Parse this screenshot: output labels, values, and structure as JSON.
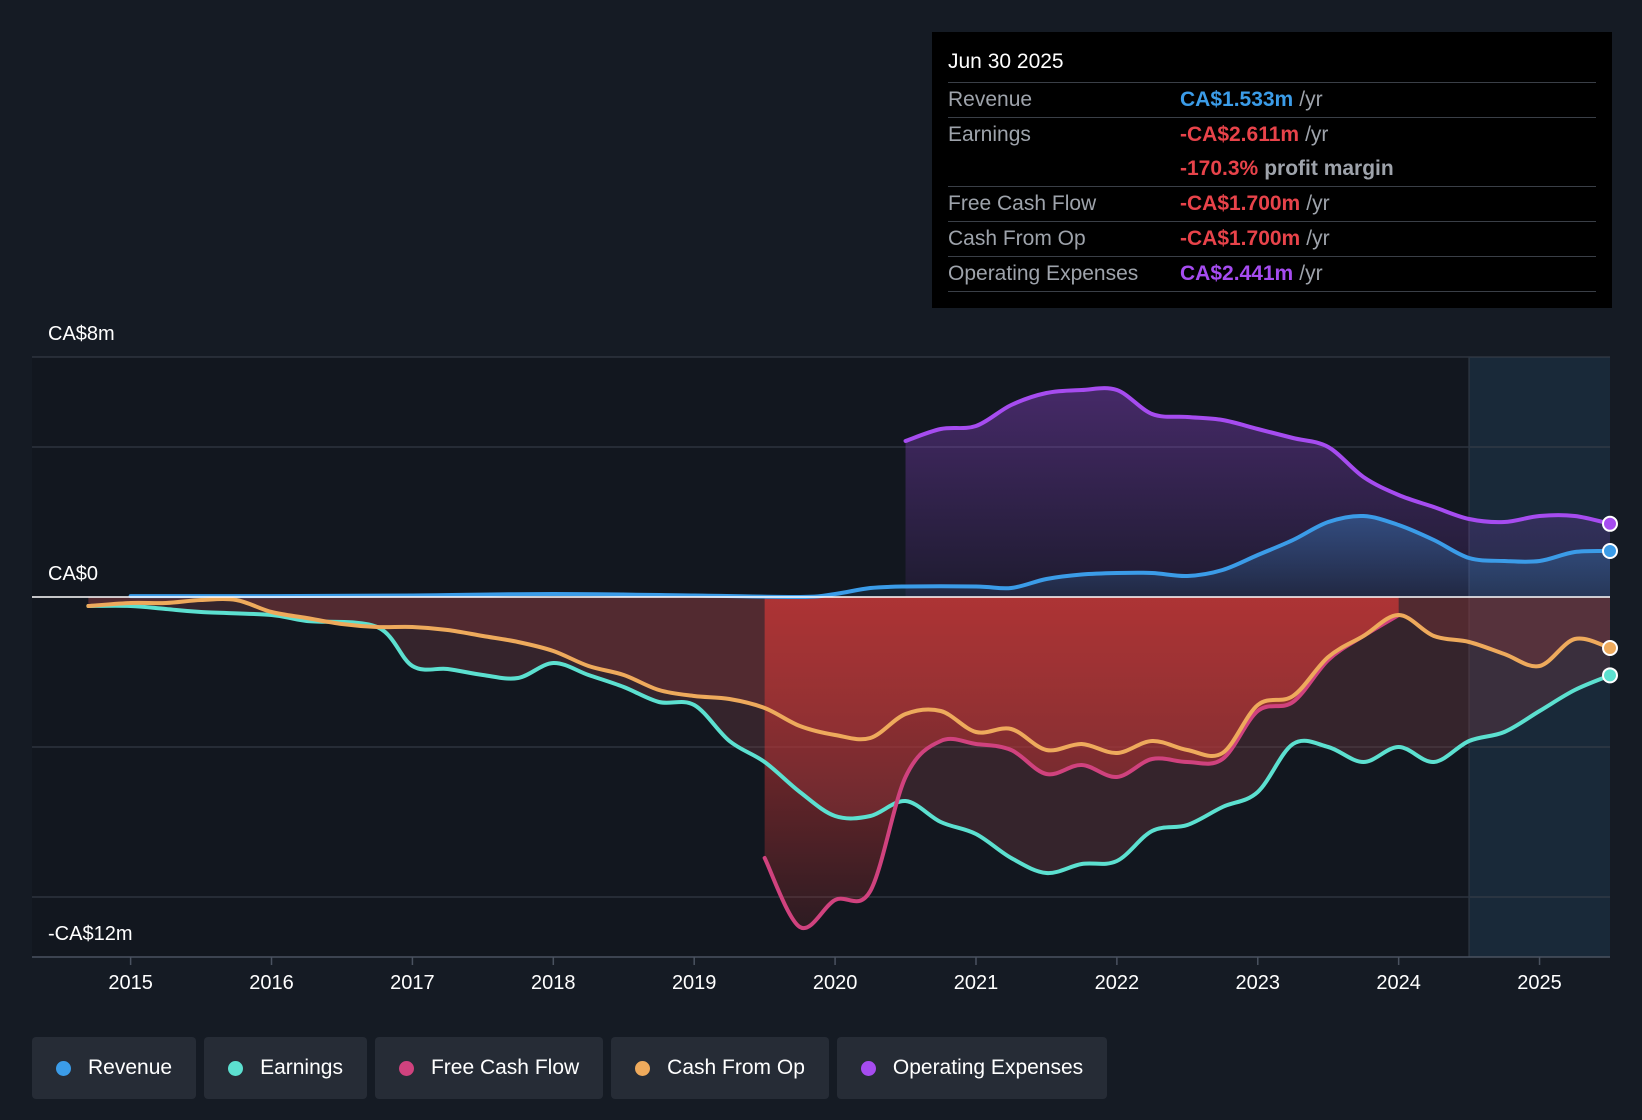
{
  "tooltip": {
    "date": "Jun 30 2025",
    "rows": [
      {
        "label": "Revenue",
        "value": "CA$1.533m",
        "unit": "/yr",
        "color": "#3b9ce8"
      },
      {
        "label": "Earnings",
        "value": "-CA$2.611m",
        "unit": "/yr",
        "color": "#e8434a"
      },
      {
        "label": "",
        "value": "-170.3%",
        "unit": "profit margin",
        "color": "#e8434a"
      },
      {
        "label": "Free Cash Flow",
        "value": "-CA$1.700m",
        "unit": "/yr",
        "color": "#e8434a"
      },
      {
        "label": "Cash From Op",
        "value": "-CA$1.700m",
        "unit": "/yr",
        "color": "#e8434a"
      },
      {
        "label": "Operating Expenses",
        "value": "CA$2.441m",
        "unit": "/yr",
        "color": "#a64cf0"
      }
    ]
  },
  "legend": [
    {
      "label": "Revenue",
      "color": "#3b9ce8"
    },
    {
      "label": "Earnings",
      "color": "#5ce0d0"
    },
    {
      "label": "Free Cash Flow",
      "color": "#d0427e"
    },
    {
      "label": "Cash From Op",
      "color": "#eeaa5c"
    },
    {
      "label": "Operating Expenses",
      "color": "#a64cf0"
    }
  ],
  "chart_data": {
    "type": "line",
    "title": "",
    "xlabel": "",
    "ylabel": "",
    "y_labels": {
      "top": "CA$8m",
      "zero": "CA$0",
      "bottom": "-CA$12m"
    },
    "ylim": [
      -12,
      8
    ],
    "xlim": [
      2014.3,
      2025.5
    ],
    "x_ticks": [
      {
        "value": 2015,
        "label": "2015"
      },
      {
        "value": 2016,
        "label": "2016"
      },
      {
        "value": 2017,
        "label": "2017"
      },
      {
        "value": 2018,
        "label": "2018"
      },
      {
        "value": 2019,
        "label": "2019"
      },
      {
        "value": 2020,
        "label": "2020"
      },
      {
        "value": 2021,
        "label": "2021"
      },
      {
        "value": 2022,
        "label": "2022"
      },
      {
        "value": 2023,
        "label": "2023"
      },
      {
        "value": 2024,
        "label": "2024"
      },
      {
        "value": 2025,
        "label": "2025"
      }
    ],
    "y_gridlines": [
      8,
      5,
      0,
      -5,
      -10
    ],
    "forecast_start": 2024.5,
    "series": [
      {
        "name": "Operating Expenses",
        "color": "#a64cf0",
        "x": [
          2020.5,
          2020.75,
          2021.0,
          2021.25,
          2021.5,
          2021.75,
          2022.0,
          2022.25,
          2022.5,
          2022.75,
          2023.0,
          2023.25,
          2023.5,
          2023.75,
          2024.0,
          2024.25,
          2024.5,
          2024.75,
          2025.0,
          2025.25,
          2025.5
        ],
        "y": [
          5.2,
          5.6,
          5.7,
          6.4,
          6.8,
          6.9,
          6.9,
          6.1,
          6.0,
          5.9,
          5.6,
          5.3,
          5.0,
          4.0,
          3.4,
          3.0,
          2.6,
          2.5,
          2.7,
          2.7,
          2.44
        ]
      },
      {
        "name": "Revenue",
        "color": "#3b9ce8",
        "x": [
          2015.0,
          2016.0,
          2017.0,
          2018.0,
          2019.0,
          2019.75,
          2020.0,
          2020.25,
          2020.5,
          2021.0,
          2021.25,
          2021.5,
          2021.75,
          2022.0,
          2022.25,
          2022.5,
          2022.75,
          2023.0,
          2023.25,
          2023.5,
          2023.75,
          2024.0,
          2024.25,
          2024.5,
          2024.75,
          2025.0,
          2025.25,
          2025.5
        ],
        "y": [
          0.03,
          0.03,
          0.05,
          0.1,
          0.05,
          0.0,
          0.1,
          0.3,
          0.35,
          0.35,
          0.3,
          0.6,
          0.75,
          0.8,
          0.8,
          0.7,
          0.9,
          1.4,
          1.9,
          2.5,
          2.7,
          2.4,
          1.9,
          1.3,
          1.2,
          1.2,
          1.5,
          1.533
        ]
      },
      {
        "name": "Earnings",
        "color": "#5ce0d0",
        "x": [
          2014.7,
          2015.0,
          2015.25,
          2015.5,
          2016.0,
          2016.25,
          2016.75,
          2017.0,
          2017.25,
          2017.5,
          2017.75,
          2018.0,
          2018.25,
          2018.5,
          2018.75,
          2019.0,
          2019.25,
          2019.5,
          2019.75,
          2020.0,
          2020.25,
          2020.5,
          2020.75,
          2021.0,
          2021.25,
          2021.5,
          2021.75,
          2022.0,
          2022.25,
          2022.5,
          2022.75,
          2023.0,
          2023.25,
          2023.5,
          2023.75,
          2024.0,
          2024.25,
          2024.5,
          2024.75,
          2025.0,
          2025.25,
          2025.5
        ],
        "y": [
          -0.3,
          -0.3,
          -0.4,
          -0.5,
          -0.6,
          -0.8,
          -1.0,
          -2.3,
          -2.4,
          -2.6,
          -2.7,
          -2.2,
          -2.6,
          -3.0,
          -3.5,
          -3.6,
          -4.8,
          -5.5,
          -6.5,
          -7.3,
          -7.3,
          -6.8,
          -7.5,
          -7.9,
          -8.7,
          -9.2,
          -8.9,
          -8.8,
          -7.8,
          -7.6,
          -7.0,
          -6.5,
          -4.9,
          -5.0,
          -5.5,
          -5.0,
          -5.5,
          -4.8,
          -4.5,
          -3.8,
          -3.1,
          -2.611
        ]
      },
      {
        "name": "Free Cash Flow",
        "color": "#d0427e",
        "x": [
          2019.5,
          2019.75,
          2020.0,
          2020.25,
          2020.5,
          2020.75,
          2021.0,
          2021.25,
          2021.5,
          2021.75,
          2022.0,
          2022.25,
          2022.5,
          2022.75,
          2023.0,
          2023.25,
          2023.5,
          2023.75,
          2024.0
        ],
        "y": [
          -8.7,
          -11.0,
          -10.1,
          -9.8,
          -6.0,
          -4.8,
          -4.9,
          -5.1,
          -5.9,
          -5.6,
          -6.0,
          -5.4,
          -5.5,
          -5.4,
          -3.8,
          -3.5,
          -2.1,
          -1.3,
          -0.6
        ]
      },
      {
        "name": "Cash From Op",
        "color": "#eeaa5c",
        "x": [
          2014.7,
          2015.0,
          2015.25,
          2015.5,
          2015.75,
          2016.0,
          2016.25,
          2016.5,
          2016.75,
          2017.0,
          2017.25,
          2017.5,
          2017.75,
          2018.0,
          2018.25,
          2018.5,
          2018.75,
          2019.0,
          2019.25,
          2019.5,
          2019.75,
          2020.0,
          2020.25,
          2020.5,
          2020.75,
          2021.0,
          2021.25,
          2021.5,
          2021.75,
          2022.0,
          2022.25,
          2022.5,
          2022.75,
          2023.0,
          2023.25,
          2023.5,
          2023.75,
          2024.0,
          2024.25,
          2024.5,
          2024.75,
          2025.0,
          2025.25,
          2025.5
        ],
        "y": [
          -0.3,
          -0.2,
          -0.2,
          -0.1,
          -0.1,
          -0.5,
          -0.7,
          -0.9,
          -1.0,
          -1.0,
          -1.1,
          -1.3,
          -1.5,
          -1.8,
          -2.3,
          -2.6,
          -3.1,
          -3.3,
          -3.4,
          -3.7,
          -4.3,
          -4.6,
          -4.7,
          -3.9,
          -3.8,
          -4.5,
          -4.4,
          -5.1,
          -4.9,
          -5.2,
          -4.8,
          -5.1,
          -5.2,
          -3.6,
          -3.3,
          -2.0,
          -1.3,
          -0.6,
          -1.3,
          -1.5,
          -1.9,
          -2.3,
          -1.4,
          -1.7
        ]
      }
    ]
  }
}
